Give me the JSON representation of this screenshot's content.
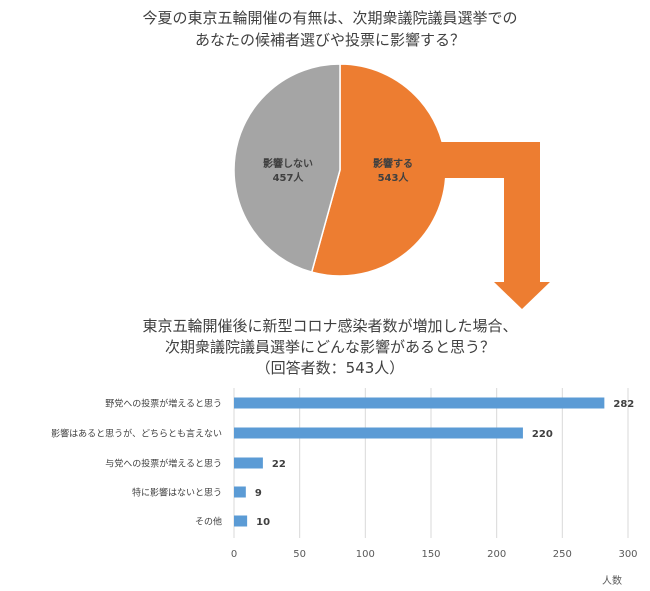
{
  "colors": {
    "affect": "#ed7d31",
    "no_affect": "#a5a5a5",
    "bar": "#5b9bd5",
    "grid": "#d9d9d9",
    "arrow": "#ed7d31"
  },
  "chart_data": [
    {
      "type": "pie",
      "title": [
        "今夏の東京五輪開催の有無は、次期衆議院議員選挙での",
        "あなたの候補者選びや投票に影響する？"
      ],
      "slices": [
        {
          "name": "影響する",
          "value": 543,
          "value_label": "543人"
        },
        {
          "name": "影響しない",
          "value": 457,
          "value_label": "457人"
        }
      ]
    },
    {
      "type": "bar",
      "orientation": "horizontal",
      "title": [
        "東京五輪開催後に新型コロナ感染者数が増加した場合、",
        "次期衆議院議員選挙にどんな影響があると思う？",
        "（回答者数：543人）"
      ],
      "categories": [
        "野党への投票が増えると思う",
        "影響はあると思うが、どちらとも言えない",
        "与党への投票が増えると思う",
        "特に影響はないと思う",
        "その他"
      ],
      "values": [
        282,
        220,
        22,
        9,
        10
      ],
      "xlabel": "人数",
      "xlim": [
        0,
        300
      ],
      "xticks": [
        "0",
        "50",
        "100",
        "150",
        "200",
        "250",
        "300"
      ],
      "grid": true
    }
  ]
}
